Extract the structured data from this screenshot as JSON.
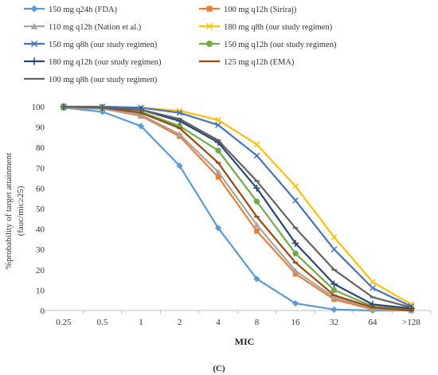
{
  "chart_data": {
    "type": "line",
    "x": [
      "0.25",
      "0.5",
      "1",
      "2",
      "4",
      "8",
      "16",
      "32",
      "64",
      ">128"
    ],
    "xlabel": "MIC",
    "ylabel_line1": "%probability of target attainment",
    "ylabel_line2": "(fauc/mic≥25)",
    "ylim": [
      0,
      100
    ],
    "yticks": [
      0,
      10,
      20,
      30,
      40,
      50,
      60,
      70,
      80,
      90,
      100
    ],
    "grid": false,
    "legend_position": "top",
    "caption": "(C)",
    "series": [
      {
        "name": "150 mg q24h (FDA)",
        "color": "#5b9bd5",
        "marker": "diamond",
        "values": [
          99.5,
          97.5,
          90.5,
          71,
          40.5,
          15.5,
          3.5,
          0.5,
          0,
          0
        ]
      },
      {
        "name": "100 mg q12h (Siriraj)",
        "color": "#ed7d31",
        "marker": "square",
        "values": [
          99.5,
          99,
          95.5,
          85.5,
          65.5,
          39,
          18,
          5.5,
          0.5,
          0
        ]
      },
      {
        "name": "110 mg q12h (Nation et al.)",
        "color": "#a5a5a5",
        "marker": "triangle",
        "values": [
          99.5,
          99,
          96,
          86.5,
          68,
          42,
          19.5,
          6.5,
          1,
          0
        ]
      },
      {
        "name": "180 mg q8h (our study regimen)",
        "color": "#ffc000",
        "marker": "x",
        "values": [
          100,
          100,
          99.5,
          98,
          93.5,
          81.5,
          61,
          36,
          14,
          3
        ]
      },
      {
        "name": "150 mg q8h (our study regimen)",
        "color": "#4472c4",
        "marker": "x",
        "values": [
          100,
          100,
          99.5,
          97,
          91,
          76,
          54,
          30,
          11,
          2
        ]
      },
      {
        "name": "150 mg q12h (our study regimen)",
        "color": "#70ad47",
        "marker": "circle",
        "values": [
          100,
          99.5,
          97.5,
          90.5,
          78.5,
          53.5,
          28,
          10,
          2,
          0.5
        ]
      },
      {
        "name": "180 mg q12h (our study regimen)",
        "color": "#264478",
        "marker": "plus",
        "values": [
          100,
          99.5,
          98.5,
          93,
          82.5,
          60,
          33,
          13,
          3,
          1
        ]
      },
      {
        "name": "125 mg q12h (EMA)",
        "color": "#9e480e",
        "marker": "dash",
        "values": [
          100,
          99.5,
          97,
          89.5,
          72.5,
          46,
          23.5,
          7.5,
          1.5,
          0
        ]
      },
      {
        "name": "100 mg q8h (our study regimen)",
        "color": "#636363",
        "marker": "dash",
        "values": [
          100,
          99.5,
          98.5,
          94,
          83.5,
          63.5,
          40.5,
          20,
          6.5,
          1.5
        ]
      }
    ]
  }
}
